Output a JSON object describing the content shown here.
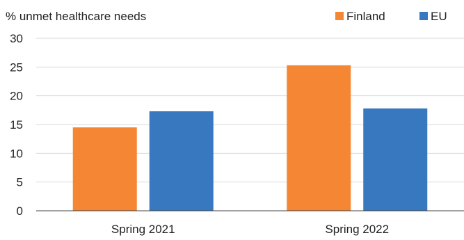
{
  "chart_data": {
    "type": "bar",
    "title": "",
    "ylabel": "% unmet healthcare needs",
    "xlabel": "",
    "categories": [
      "Spring 2021",
      "Spring 2022"
    ],
    "series": [
      {
        "name": "Finland",
        "values": [
          14.5,
          25.3
        ],
        "color": "#F58634"
      },
      {
        "name": "EU",
        "values": [
          17.3,
          17.8
        ],
        "color": "#3778BE"
      }
    ],
    "ylim": [
      0,
      30
    ],
    "yticks": [
      "0",
      "5",
      "10",
      "15",
      "20",
      "25",
      "30"
    ],
    "grid": true,
    "legend_position": "top-right"
  }
}
